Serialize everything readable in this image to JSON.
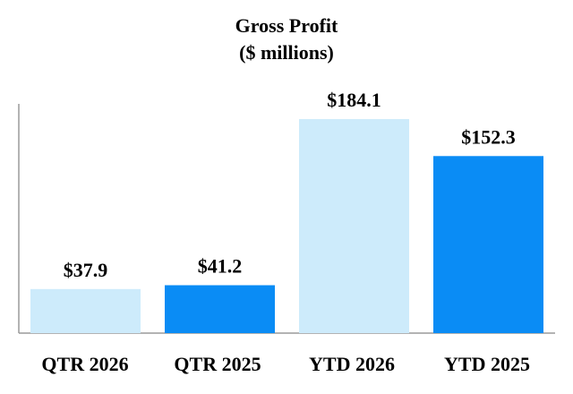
{
  "chart_data": {
    "type": "bar",
    "title": "Gross Profit",
    "subtitle": "($ millions)",
    "categories": [
      "QTR 2026",
      "QTR 2025",
      "YTD 2026",
      "YTD 2025"
    ],
    "values": [
      37.9,
      41.2,
      184.1,
      152.3
    ],
    "data_labels": [
      "$37.9",
      "$41.2",
      "$184.1",
      "$152.3"
    ],
    "bar_colors": [
      "#cdebfb",
      "#0a8cf5",
      "#cdebfb",
      "#0a8cf5"
    ],
    "ylim": [
      0,
      184.1
    ],
    "xlabel": "",
    "ylabel": "",
    "grid": false,
    "legend": "none"
  }
}
